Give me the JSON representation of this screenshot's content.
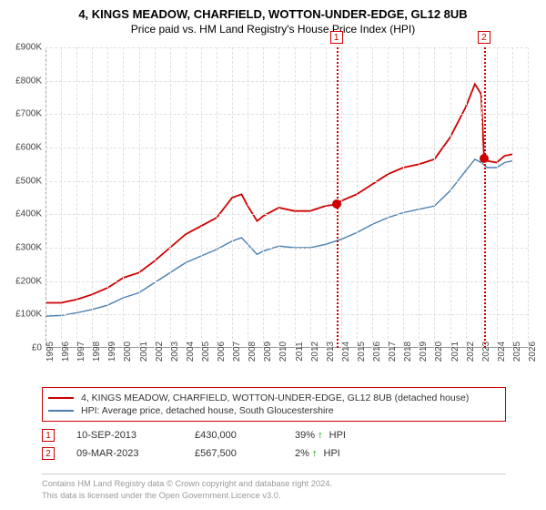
{
  "titles": {
    "line1": "4, KINGS MEADOW, CHARFIELD, WOTTON-UNDER-EDGE, GL12 8UB",
    "line2": "Price paid vs. HM Land Registry's House Price Index (HPI)"
  },
  "chart": {
    "type": "line",
    "background_color": "#ffffff",
    "grid_color": "#e0e0e0",
    "x": {
      "min": 1995,
      "max": 2026,
      "ticks": [
        1995,
        1996,
        1997,
        1998,
        1999,
        2000,
        2001,
        2002,
        2003,
        2004,
        2005,
        2006,
        2007,
        2008,
        2009,
        2010,
        2011,
        2012,
        2013,
        2014,
        2015,
        2016,
        2017,
        2018,
        2019,
        2020,
        2021,
        2022,
        2023,
        2024,
        2025,
        2026
      ]
    },
    "y": {
      "min": 0,
      "max": 900000,
      "tick_step": 100000,
      "tick_labels": [
        "£0",
        "£100K",
        "£200K",
        "£300K",
        "£400K",
        "£500K",
        "£600K",
        "£700K",
        "£800K",
        "£900K"
      ]
    },
    "series": [
      {
        "name": "property",
        "color": "#cc0000",
        "width": 1.8,
        "points": [
          [
            1995,
            135000
          ],
          [
            1996,
            135000
          ],
          [
            1997,
            145000
          ],
          [
            1998,
            160000
          ],
          [
            1999,
            180000
          ],
          [
            2000,
            210000
          ],
          [
            2001,
            225000
          ],
          [
            2002,
            260000
          ],
          [
            2003,
            300000
          ],
          [
            2004,
            340000
          ],
          [
            2005,
            365000
          ],
          [
            2006,
            390000
          ],
          [
            2007,
            450000
          ],
          [
            2007.6,
            460000
          ],
          [
            2008,
            425000
          ],
          [
            2008.6,
            380000
          ],
          [
            2009,
            395000
          ],
          [
            2010,
            420000
          ],
          [
            2011,
            410000
          ],
          [
            2012,
            410000
          ],
          [
            2013,
            425000
          ],
          [
            2013.7,
            430000
          ],
          [
            2014,
            440000
          ],
          [
            2015,
            460000
          ],
          [
            2016,
            490000
          ],
          [
            2017,
            520000
          ],
          [
            2018,
            540000
          ],
          [
            2019,
            550000
          ],
          [
            2020,
            565000
          ],
          [
            2021,
            630000
          ],
          [
            2022,
            720000
          ],
          [
            2022.6,
            790000
          ],
          [
            2023,
            760000
          ],
          [
            2023.19,
            567500
          ],
          [
            2023.4,
            560000
          ],
          [
            2024,
            555000
          ],
          [
            2024.5,
            575000
          ],
          [
            2025,
            580000
          ]
        ]
      },
      {
        "name": "hpi",
        "color": "#4a7fb0",
        "width": 1.4,
        "points": [
          [
            1995,
            95000
          ],
          [
            1996,
            97000
          ],
          [
            1997,
            105000
          ],
          [
            1998,
            115000
          ],
          [
            1999,
            128000
          ],
          [
            2000,
            150000
          ],
          [
            2001,
            165000
          ],
          [
            2002,
            195000
          ],
          [
            2003,
            225000
          ],
          [
            2004,
            255000
          ],
          [
            2005,
            275000
          ],
          [
            2006,
            295000
          ],
          [
            2007,
            320000
          ],
          [
            2007.6,
            330000
          ],
          [
            2008,
            310000
          ],
          [
            2008.6,
            280000
          ],
          [
            2009,
            290000
          ],
          [
            2010,
            305000
          ],
          [
            2011,
            300000
          ],
          [
            2012,
            300000
          ],
          [
            2013,
            310000
          ],
          [
            2014,
            325000
          ],
          [
            2015,
            345000
          ],
          [
            2016,
            370000
          ],
          [
            2017,
            390000
          ],
          [
            2018,
            405000
          ],
          [
            2019,
            415000
          ],
          [
            2020,
            425000
          ],
          [
            2021,
            470000
          ],
          [
            2022,
            530000
          ],
          [
            2022.6,
            565000
          ],
          [
            2023,
            555000
          ],
          [
            2023.4,
            540000
          ],
          [
            2024,
            540000
          ],
          [
            2024.5,
            555000
          ],
          [
            2025,
            560000
          ]
        ]
      }
    ],
    "sale_markers": [
      {
        "n": "1",
        "year": 2013.7,
        "price": 430000
      },
      {
        "n": "2",
        "year": 2023.19,
        "price": 567500
      }
    ]
  },
  "legend": {
    "items": [
      {
        "color": "#cc0000",
        "label": "4, KINGS MEADOW, CHARFIELD, WOTTON-UNDER-EDGE, GL12 8UB (detached house)"
      },
      {
        "color": "#4a7fb0",
        "label": "HPI: Average price, detached house, South Gloucestershire"
      }
    ]
  },
  "sales": [
    {
      "n": "1",
      "date": "10-SEP-2013",
      "price": "£430,000",
      "pct": "39%",
      "suffix": "HPI"
    },
    {
      "n": "2",
      "date": "09-MAR-2023",
      "price": "£567,500",
      "pct": "2%",
      "suffix": "HPI"
    }
  ],
  "footer": {
    "line1": "Contains HM Land Registry data © Crown copyright and database right 2024.",
    "line2": "This data is licensed under the Open Government Licence v3.0."
  }
}
